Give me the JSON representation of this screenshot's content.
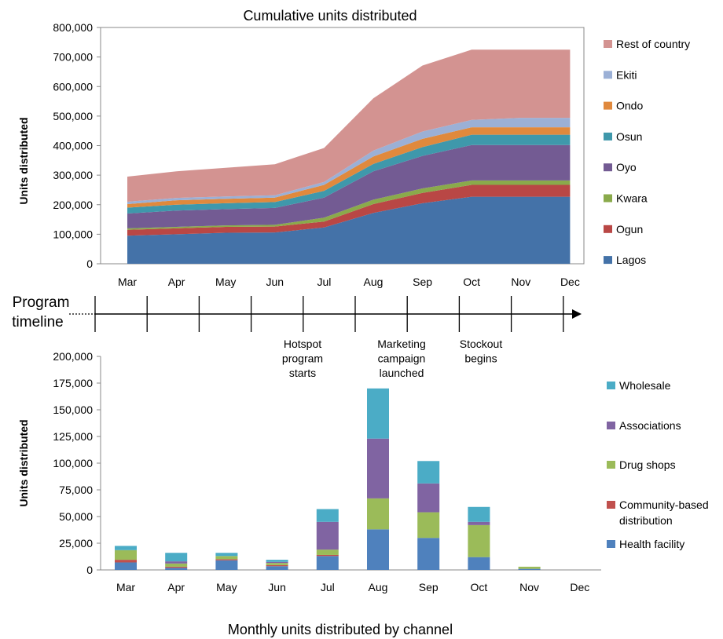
{
  "top_title": "Cumulative units distributed",
  "bottom_title": "Monthly units distributed by channel",
  "timeline_label_line1": "Program",
  "timeline_label_line2": "timeline",
  "annotations": [
    {
      "lines": [
        "Hotspot",
        "program",
        "starts"
      ]
    },
    {
      "lines": [
        "Marketing",
        "campaign",
        "launched"
      ]
    },
    {
      "lines": [
        "Stockout",
        "begins"
      ]
    }
  ],
  "chart_data": [
    {
      "type": "area",
      "stacked": true,
      "title": "Cumulative units distributed",
      "xlabel": "",
      "ylabel": "Units distributed",
      "categories": [
        "Mar",
        "Apr",
        "May",
        "Jun",
        "Jul",
        "Aug",
        "Sep",
        "Oct",
        "Nov",
        "Dec"
      ],
      "ylim": [
        0,
        800000
      ],
      "yticks": [
        "0",
        "100,000",
        "200,000",
        "300,000",
        "400,000",
        "500,000",
        "600,000",
        "700,000",
        "800,000"
      ],
      "grid": false,
      "legend_position": "right",
      "series": [
        {
          "name": "Lagos",
          "color": "#4472a8",
          "values": [
            95000,
            100000,
            105000,
            106000,
            123000,
            172000,
            205000,
            227000,
            227000,
            227000
          ]
        },
        {
          "name": "Ogun",
          "color": "#b94745",
          "values": [
            20000,
            20000,
            20000,
            20000,
            20000,
            30000,
            35000,
            40000,
            40000,
            40000
          ]
        },
        {
          "name": "Kwara",
          "color": "#8aaa4b",
          "values": [
            5000,
            5000,
            5000,
            6000,
            13000,
            15000,
            15000,
            15000,
            15000,
            15000
          ]
        },
        {
          "name": "Oyo",
          "color": "#735b93",
          "values": [
            50000,
            55000,
            55000,
            57000,
            68000,
            96000,
            110000,
            120000,
            120000,
            120000
          ]
        },
        {
          "name": "Osun",
          "color": "#3f98ab",
          "values": [
            20000,
            20000,
            20000,
            20000,
            23000,
            25000,
            30000,
            35000,
            35000,
            35000
          ]
        },
        {
          "name": "Ondo",
          "color": "#e0893d",
          "values": [
            12000,
            15000,
            15000,
            15000,
            20000,
            25000,
            28000,
            25000,
            25000,
            25000
          ]
        },
        {
          "name": "Ekiti",
          "color": "#9bb0d6",
          "values": [
            8000,
            8000,
            8000,
            8000,
            10000,
            20000,
            25000,
            25000,
            32000,
            32000
          ]
        },
        {
          "name": "Rest of country",
          "color": "#d39391",
          "values": [
            85000,
            90000,
            97000,
            105000,
            115000,
            177000,
            223000,
            238000,
            231000,
            231000
          ]
        }
      ]
    },
    {
      "type": "bar",
      "stacked": true,
      "title": "Monthly units distributed by channel",
      "xlabel": "",
      "ylabel": "Units distributed",
      "categories": [
        "Mar",
        "Apr",
        "May",
        "Jun",
        "Jul",
        "Aug",
        "Sep",
        "Oct",
        "Nov",
        "Dec"
      ],
      "ylim": [
        0,
        200000
      ],
      "yticks": [
        "0",
        "25,000",
        "50,000",
        "75,000",
        "100,000",
        "125,000",
        "150,000",
        "175,000",
        "200,000"
      ],
      "grid": false,
      "legend_position": "right",
      "series": [
        {
          "name": "Health facility",
          "color": "#4f81bd",
          "values": [
            7000,
            2000,
            9000,
            3500,
            13000,
            38000,
            30000,
            12000,
            1000,
            0
          ]
        },
        {
          "name": "Community-based distribution",
          "color": "#c0504d",
          "values": [
            2500,
            1000,
            1000,
            1000,
            1000,
            0,
            0,
            0,
            0,
            0
          ]
        },
        {
          "name": "Drug shops",
          "color": "#9bbb59",
          "values": [
            9000,
            3000,
            3000,
            2000,
            5000,
            29000,
            24000,
            30000,
            2000,
            0
          ]
        },
        {
          "name": "Associations",
          "color": "#8064a2",
          "values": [
            0,
            2000,
            0,
            1000,
            26000,
            56000,
            27000,
            3000,
            0,
            0
          ]
        },
        {
          "name": "Wholesale",
          "color": "#4bacc6",
          "values": [
            4000,
            8000,
            3000,
            2000,
            12000,
            47000,
            21000,
            14000,
            0,
            0
          ]
        }
      ]
    }
  ]
}
